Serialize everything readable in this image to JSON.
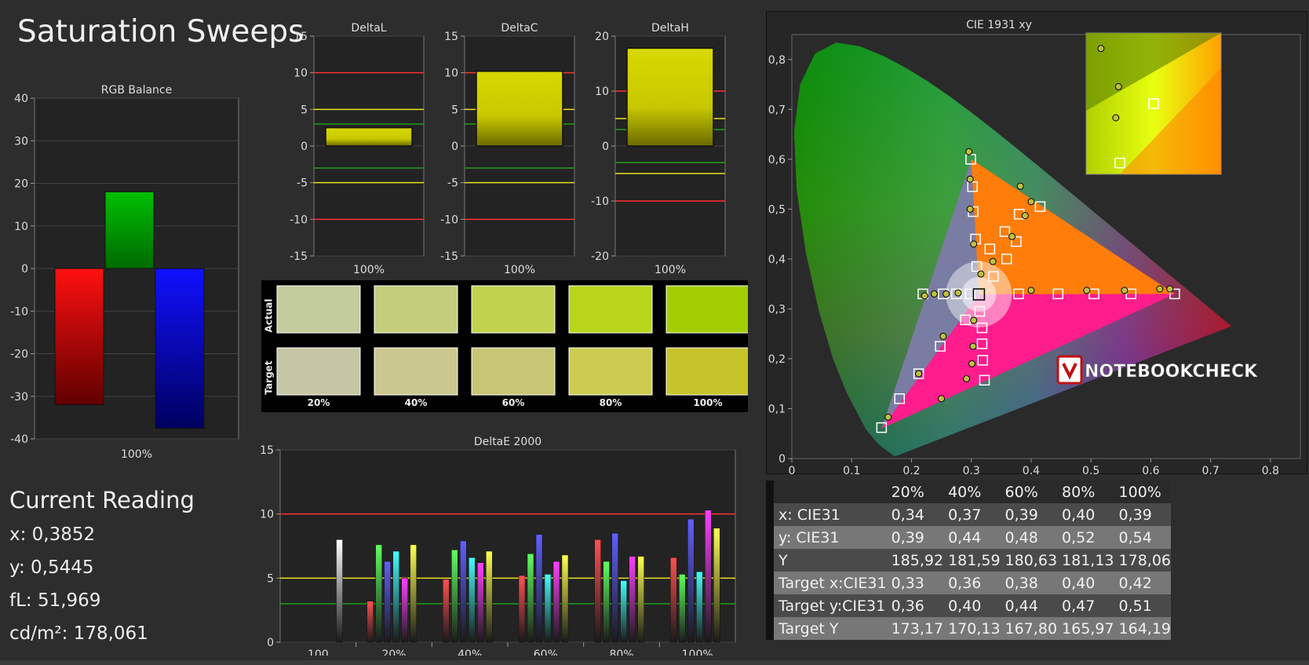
{
  "page_title": "Saturation Sweeps",
  "current_reading": {
    "heading": "Current Reading",
    "lines": [
      "x: 0,3852",
      "y: 0,5445",
      "fL: 51,969",
      "cd/m²: 178,061"
    ]
  },
  "chart_data": [
    {
      "id": "rgb_balance",
      "type": "bar",
      "title": "RGB Balance",
      "categories": [
        "100%"
      ],
      "series": [
        {
          "values": [
            -32
          ],
          "color": "#ff0000"
        },
        {
          "values": [
            18
          ],
          "color": "#008800"
        },
        {
          "values": [
            -37.5
          ],
          "color": "#0000ff"
        }
      ],
      "ylim": [
        -40,
        40
      ],
      "yticks": [
        "40",
        "30",
        "20",
        "10",
        "0",
        "-10",
        "-20",
        "-30",
        "-40"
      ]
    },
    {
      "id": "delta_l",
      "type": "bar",
      "title": "DeltaL",
      "categories": [
        "100%"
      ],
      "values": [
        2.5
      ],
      "ylim": [
        -15,
        15
      ],
      "yticks": [
        "15",
        "10",
        "5",
        "0",
        "-5",
        "-10",
        "-15"
      ],
      "ref_lines": {
        "red": 10,
        "yellow": 5,
        "green": 3
      }
    },
    {
      "id": "delta_c",
      "type": "bar",
      "title": "DeltaC",
      "categories": [
        "100%"
      ],
      "values": [
        10.2
      ],
      "ylim": [
        -15,
        15
      ],
      "yticks": [
        "15",
        "10",
        "5",
        "0",
        "-5",
        "-10",
        "-15"
      ],
      "ref_lines": {
        "red": 10,
        "yellow": 5,
        "green": 3
      }
    },
    {
      "id": "delta_h",
      "type": "bar",
      "title": "DeltaH",
      "categories": [
        "100%"
      ],
      "values": [
        17.8
      ],
      "ylim": [
        -20,
        20
      ],
      "yticks": [
        "20",
        "10",
        "0",
        "-10",
        "-20"
      ],
      "ref_lines": {
        "red": 10,
        "yellow": 5,
        "green": 3
      }
    },
    {
      "id": "delta_e",
      "type": "bar",
      "title": "DeltaE 2000",
      "categories": [
        "100",
        "20%",
        "40%",
        "60%",
        "80%",
        "100%"
      ],
      "series": [
        {
          "color": "#ffffff",
          "values": [
            8.0,
            null,
            null,
            null,
            null,
            null
          ]
        },
        {
          "color": "#ff5050",
          "values": [
            null,
            3.2,
            4.9,
            5.2,
            8.0,
            6.6
          ]
        },
        {
          "color": "#60ff60",
          "values": [
            null,
            7.6,
            7.2,
            6.9,
            6.3,
            5.3
          ]
        },
        {
          "color": "#6060ff",
          "values": [
            null,
            6.3,
            7.9,
            8.4,
            8.5,
            9.6
          ]
        },
        {
          "color": "#40ffff",
          "values": [
            null,
            7.1,
            6.6,
            5.3,
            4.8,
            5.5
          ]
        },
        {
          "color": "#ff40ff",
          "values": [
            null,
            5.0,
            6.2,
            6.3,
            6.7,
            10.3
          ]
        },
        {
          "color": "#ffff50",
          "values": [
            null,
            7.6,
            7.1,
            6.8,
            6.7,
            8.9
          ]
        }
      ],
      "ylim": [
        0,
        15
      ],
      "yticks": [
        "15",
        "10",
        "5",
        "0"
      ],
      "ref_lines": {
        "red": 10,
        "yellow": 5,
        "green": 3
      }
    },
    {
      "id": "cie_1931",
      "type": "scatter",
      "title": "CIE 1931 xy",
      "xlim": [
        0,
        0.85
      ],
      "ylim": [
        0,
        0.85
      ],
      "xticks": [
        "0",
        "0,1",
        "0,2",
        "0,3",
        "0,4",
        "0,5",
        "0,6",
        "0,7",
        "0,8"
      ],
      "yticks": [
        "0",
        "0,1",
        "0,2",
        "0,3",
        "0,4",
        "0,5",
        "0,6",
        "0,7",
        "0,8"
      ],
      "gamut": [
        [
          0.64,
          0.33
        ],
        [
          0.3,
          0.6
        ],
        [
          0.15,
          0.06
        ]
      ],
      "white_point": [
        0.3127,
        0.329
      ],
      "targets": [
        [
          0.299,
          0.6
        ],
        [
          0.302,
          0.545
        ],
        [
          0.303,
          0.495
        ],
        [
          0.307,
          0.44
        ],
        [
          0.309,
          0.385
        ],
        [
          0.331,
          0.42
        ],
        [
          0.356,
          0.455
        ],
        [
          0.38,
          0.49
        ],
        [
          0.415,
          0.505
        ],
        [
          0.337,
          0.365
        ],
        [
          0.359,
          0.4
        ],
        [
          0.375,
          0.435
        ],
        [
          0.379,
          0.33
        ],
        [
          0.445,
          0.33
        ],
        [
          0.505,
          0.33
        ],
        [
          0.567,
          0.33
        ],
        [
          0.64,
          0.33
        ],
        [
          0.219,
          0.33
        ],
        [
          0.253,
          0.33
        ],
        [
          0.275,
          0.33
        ],
        [
          0.298,
          0.33
        ],
        [
          0.314,
          0.295
        ],
        [
          0.318,
          0.262
        ],
        [
          0.318,
          0.23
        ],
        [
          0.319,
          0.197
        ],
        [
          0.322,
          0.157
        ],
        [
          0.29,
          0.278
        ],
        [
          0.248,
          0.225
        ],
        [
          0.212,
          0.17
        ],
        [
          0.18,
          0.12
        ],
        [
          0.15,
          0.062
        ]
      ],
      "measured": [
        [
          0.296,
          0.615
        ],
        [
          0.298,
          0.56
        ],
        [
          0.298,
          0.5
        ],
        [
          0.304,
          0.43
        ],
        [
          0.316,
          0.37
        ],
        [
          0.336,
          0.395
        ],
        [
          0.368,
          0.445
        ],
        [
          0.39,
          0.487
        ],
        [
          0.4,
          0.515
        ],
        [
          0.382,
          0.546
        ],
        [
          0.4,
          0.337
        ],
        [
          0.493,
          0.337
        ],
        [
          0.556,
          0.337
        ],
        [
          0.615,
          0.34
        ],
        [
          0.632,
          0.34
        ],
        [
          0.222,
          0.326
        ],
        [
          0.238,
          0.33
        ],
        [
          0.258,
          0.33
        ],
        [
          0.278,
          0.332
        ],
        [
          0.304,
          0.277
        ],
        [
          0.303,
          0.225
        ],
        [
          0.301,
          0.19
        ],
        [
          0.292,
          0.16
        ],
        [
          0.253,
          0.245
        ],
        [
          0.212,
          0.17
        ],
        [
          0.161,
          0.083
        ],
        [
          0.25,
          0.12
        ]
      ]
    }
  ],
  "swatches": {
    "row_labels": [
      "Actual",
      "Target"
    ],
    "col_labels": [
      "20%",
      "40%",
      "60%",
      "80%",
      "100%"
    ],
    "actual": [
      "#c2cc9c",
      "#c3cd7c",
      "#c0d24e",
      "#b8d51a",
      "#a4ce04"
    ],
    "target": [
      "#c6c6a5",
      "#cac78f",
      "#c7c675",
      "#cdcc50",
      "#c7c32a"
    ]
  },
  "cie_table": {
    "columns": [
      "20%",
      "40%",
      "60%",
      "80%",
      "100%"
    ],
    "rows": [
      {
        "label": "x: CIE31",
        "values": [
          "0,34",
          "0,37",
          "0,39",
          "0,40",
          "0,39"
        ]
      },
      {
        "label": "y: CIE31",
        "values": [
          "0,39",
          "0,44",
          "0,48",
          "0,52",
          "0,54"
        ]
      },
      {
        "label": "Y",
        "values": [
          "185,92",
          "181,59",
          "180,63",
          "181,13",
          "178,06"
        ]
      },
      {
        "label": "Target x:CIE31",
        "values": [
          "0,33",
          "0,36",
          "0,38",
          "0,40",
          "0,42"
        ]
      },
      {
        "label": "Target y:CIE31",
        "values": [
          "0,36",
          "0,40",
          "0,44",
          "0,47",
          "0,51"
        ]
      },
      {
        "label": "Target Y",
        "values": [
          "173,17",
          "170,13",
          "167,80",
          "165,97",
          "164,19"
        ]
      }
    ]
  },
  "watermark": {
    "text": "NOTEBOOKCHECK"
  }
}
